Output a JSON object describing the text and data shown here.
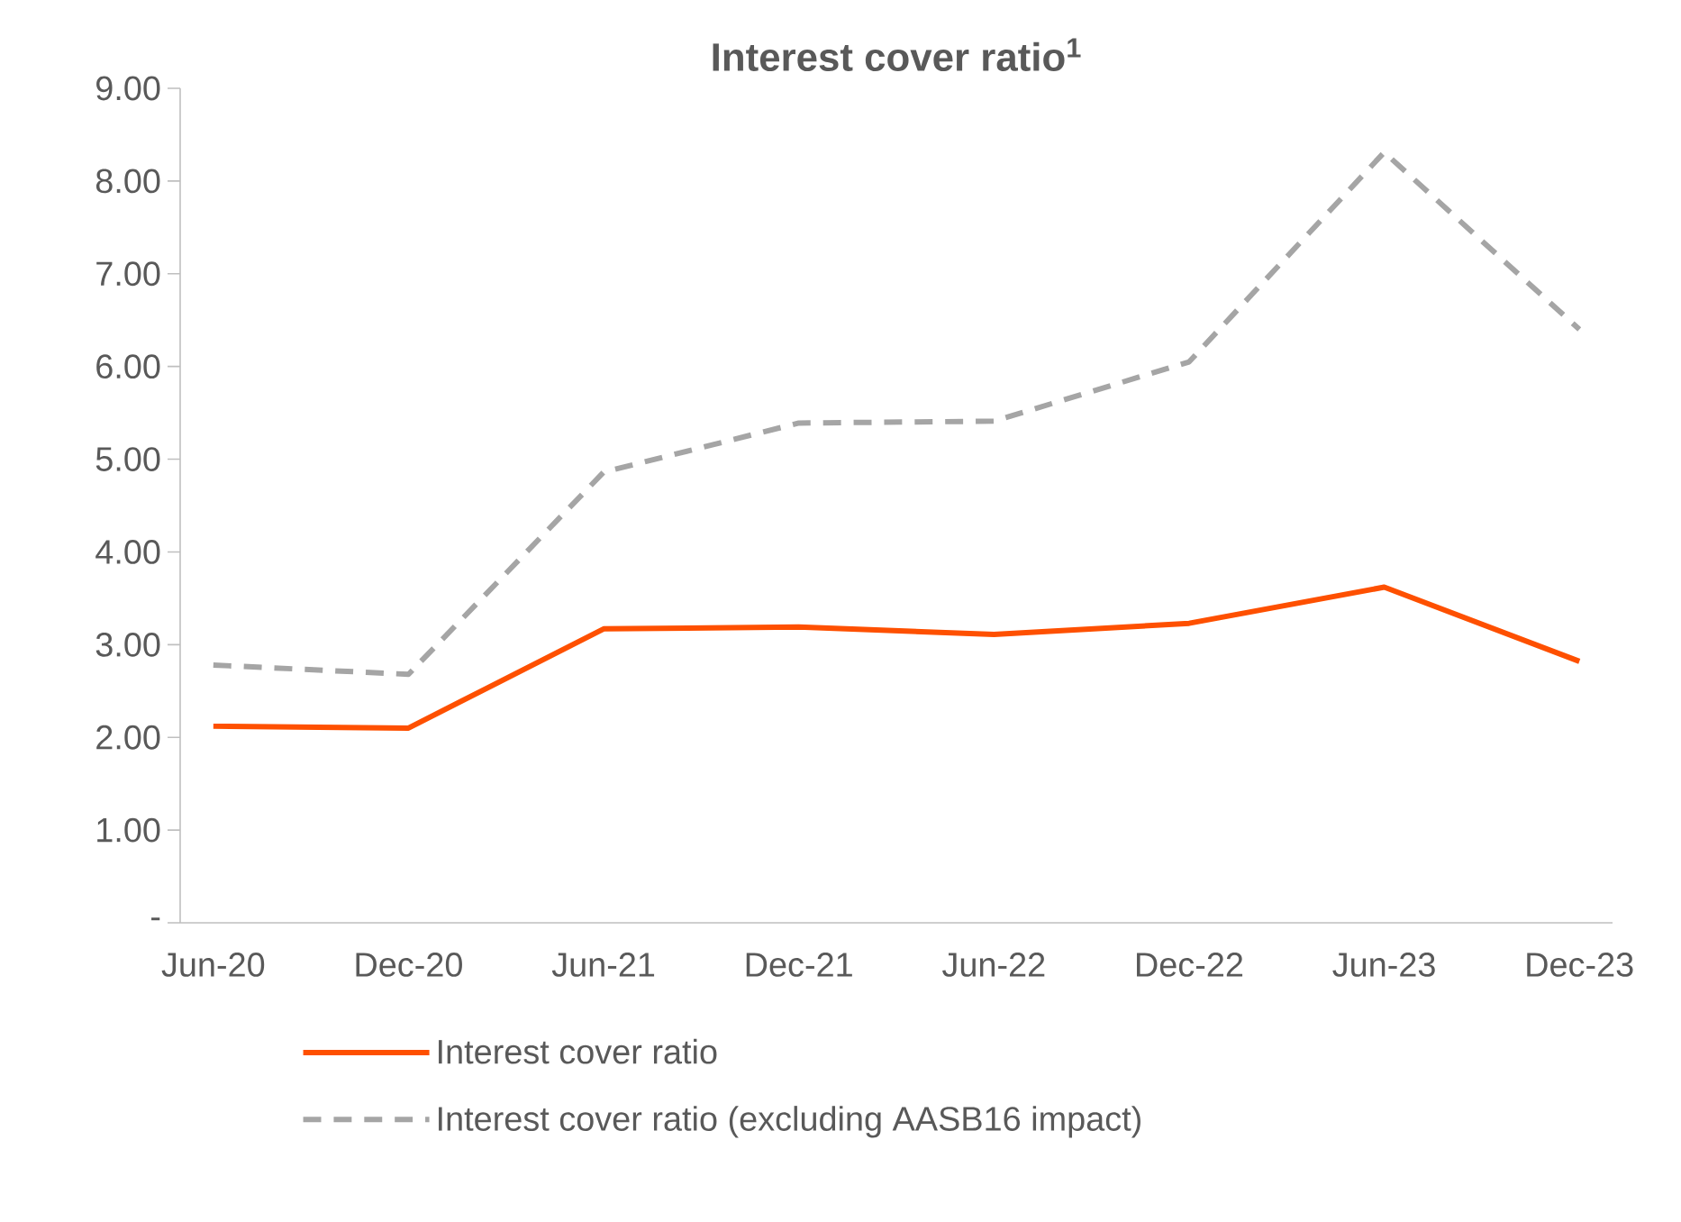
{
  "chart_data": {
    "type": "line",
    "title": "Interest cover ratio$^{1}$",
    "categories": [
      "Jun-20",
      "Dec-20",
      "Jun-21",
      "Dec-21",
      "Jun-22",
      "Dec-22",
      "Jun-23",
      "Dec-23"
    ],
    "series": [
      {
        "name": "Interest cover ratio",
        "color": "#fe5000",
        "line_style": "solid",
        "values": [
          2.12,
          2.1,
          3.17,
          3.19,
          3.11,
          3.23,
          3.62,
          2.82
        ]
      },
      {
        "name": "Interest cover ratio (excluding AASB16 impact)",
        "color": "#a5a5a5",
        "line_style": "dashed",
        "values": [
          2.78,
          2.68,
          4.86,
          5.39,
          5.41,
          6.05,
          8.31,
          6.4
        ]
      }
    ],
    "ylim": [
      0,
      9
    ],
    "yticks": [
      {
        "value": 0,
        "label": "-"
      },
      {
        "value": 1,
        "label": "1.00"
      },
      {
        "value": 2,
        "label": "2.00"
      },
      {
        "value": 3,
        "label": "3.00"
      },
      {
        "value": 4,
        "label": "4.00"
      },
      {
        "value": 5,
        "label": "5.00"
      },
      {
        "value": 6,
        "label": "6.00"
      },
      {
        "value": 7,
        "label": "7.00"
      },
      {
        "value": 8,
        "label": "8.00"
      },
      {
        "value": 9,
        "label": "9.00"
      }
    ],
    "legend": "bottom",
    "grid": false,
    "marker": "none"
  }
}
